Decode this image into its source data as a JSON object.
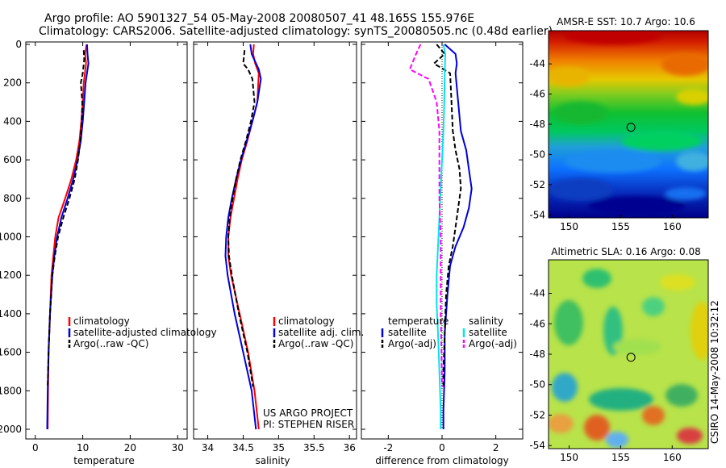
{
  "header": {
    "title_line1": "Argo profile: AO 5901327_54 05-May-2008 20080507_41 48.165S 155.976E",
    "title_line2": "Climatology: CARS2006. Satellite-adjusted climatology: synTS_20080505.nc (0.48d earlier)"
  },
  "colors": {
    "climatology": "#ff0000",
    "satellite": "#0000dd",
    "argo": "#000000",
    "sal_satellite": "#00e5ee",
    "sal_argo": "#ff00ff"
  },
  "credit": {
    "project": "US ARGO PROJECT",
    "pi": "PI: STEPHEN RISER",
    "stamp": "CSIRO 14-May-2008 10:32:12"
  },
  "chart_data": [
    {
      "id": "temperature-panel",
      "type": "line",
      "xlabel": "temperature",
      "xlim": [
        -2,
        32
      ],
      "xticks": [
        "0",
        "10",
        "20",
        "30"
      ],
      "ylim": [
        2000,
        0
      ],
      "yticks": [
        "0",
        "200",
        "400",
        "600",
        "800",
        "1000",
        "1200",
        "1400",
        "1600",
        "1800",
        "2000"
      ],
      "legend": [
        "climatology",
        "satellite-adjusted climatology",
        "Argo(..raw -QC)"
      ],
      "series": [
        {
          "name": "climatology",
          "color": "#ff0000",
          "dash": "",
          "x": [
            10.8,
            10.5,
            10.7,
            10.2,
            10.0,
            9.7,
            9.3,
            8.6,
            7.6,
            6.3,
            4.9,
            4.2,
            3.8,
            3.4,
            3.1,
            2.8,
            2.7,
            2.6
          ],
          "y": [
            0,
            50,
            100,
            200,
            300,
            400,
            500,
            600,
            700,
            800,
            900,
            1000,
            1100,
            1200,
            1400,
            1600,
            1800,
            2000
          ]
        },
        {
          "name": "satellite-adjusted climatology",
          "color": "#0000dd",
          "dash": "",
          "x": [
            10.9,
            11.0,
            11.2,
            10.6,
            10.3,
            10.0,
            9.6,
            8.9,
            8.0,
            6.8,
            5.5,
            4.6,
            4.0,
            3.6,
            3.1,
            2.8,
            2.6,
            2.5
          ],
          "y": [
            0,
            50,
            100,
            200,
            300,
            400,
            500,
            600,
            700,
            800,
            900,
            1000,
            1100,
            1200,
            1400,
            1600,
            1800,
            2000
          ]
        },
        {
          "name": "Argo(..raw -QC)",
          "color": "#000000",
          "dash": "6,3",
          "x": [
            10.2,
            10.3,
            10.0,
            9.6,
            9.9,
            9.8,
            9.5,
            9.0,
            8.3,
            7.2,
            5.9,
            4.8,
            4.1,
            3.6,
            3.1,
            2.8,
            2.6
          ],
          "y": [
            30,
            80,
            150,
            200,
            300,
            400,
            500,
            600,
            700,
            800,
            900,
            1000,
            1100,
            1200,
            1400,
            1600,
            1780
          ]
        }
      ]
    },
    {
      "id": "salinity-panel",
      "type": "line",
      "xlabel": "salinity",
      "xlim": [
        33.8,
        36.1
      ],
      "xticks": [
        "34",
        "34.5",
        "35",
        "35.5",
        "36"
      ],
      "ylim": [
        2000,
        0
      ],
      "legend": [
        "climatology",
        "satellite adj. clim.",
        "Argo(..raw -QC)"
      ],
      "series": [
        {
          "name": "climatology",
          "color": "#ff0000",
          "dash": "",
          "x": [
            34.65,
            34.64,
            34.67,
            34.72,
            34.7,
            34.63,
            34.56,
            34.48,
            34.42,
            34.37,
            34.32,
            34.29,
            34.29,
            34.33,
            34.45,
            34.57,
            34.66,
            34.72
          ],
          "y": [
            0,
            50,
            100,
            150,
            300,
            400,
            500,
            600,
            700,
            800,
            900,
            1000,
            1100,
            1200,
            1400,
            1600,
            1800,
            2000
          ]
        },
        {
          "name": "satellite adj. clim.",
          "color": "#0000dd",
          "dash": "",
          "x": [
            34.6,
            34.62,
            34.72,
            34.75,
            34.7,
            34.63,
            34.55,
            34.47,
            34.4,
            34.34,
            34.29,
            34.26,
            34.25,
            34.28,
            34.38,
            34.5,
            34.62,
            34.68
          ],
          "y": [
            0,
            50,
            130,
            180,
            300,
            400,
            500,
            600,
            700,
            800,
            900,
            1000,
            1100,
            1200,
            1400,
            1600,
            1800,
            2000
          ]
        },
        {
          "name": "Argo(..raw -QC)",
          "color": "#000000",
          "dash": "6,3",
          "x": [
            34.52,
            34.5,
            34.57,
            34.63,
            34.66,
            34.61,
            34.54,
            34.46,
            34.4,
            34.35,
            34.31,
            34.29,
            34.3,
            34.34,
            34.44,
            34.56,
            34.64
          ],
          "y": [
            30,
            100,
            130,
            180,
            300,
            400,
            500,
            600,
            700,
            800,
            900,
            1000,
            1100,
            1200,
            1400,
            1600,
            1780
          ]
        }
      ]
    },
    {
      "id": "difference-panel",
      "type": "line",
      "xlabel": "difference from climatology",
      "xlim": [
        -3.0,
        3.0
      ],
      "xticks": [
        "-2",
        "0",
        "2"
      ],
      "ylim": [
        2000,
        0
      ],
      "legend_temperature_title": "temperature",
      "legend_salinity_title": "salinity",
      "legend_temperature": [
        "satellite",
        "Argo(-adj)"
      ],
      "legend_salinity": [
        "satellite",
        "Argo(-adj)"
      ],
      "series": [
        {
          "name": "temperature satellite",
          "color": "#0000dd",
          "dash": "",
          "x": [
            0.1,
            0.5,
            0.55,
            0.5,
            0.6,
            0.7,
            0.9,
            1.0,
            1.1,
            1.0,
            0.8,
            0.5,
            0.3,
            0.2,
            0.1,
            0.1,
            0.05,
            0.05
          ],
          "y": [
            0,
            50,
            100,
            150,
            300,
            450,
            550,
            650,
            750,
            850,
            950,
            1050,
            1150,
            1300,
            1500,
            1700,
            1900,
            2000
          ]
        },
        {
          "name": "temperature Argo(-adj)",
          "color": "#000000",
          "dash": "6,3",
          "x": [
            -0.2,
            0.1,
            -0.3,
            0.3,
            0.35,
            0.4,
            0.5,
            0.65,
            0.7,
            0.6,
            0.5,
            0.4,
            0.25,
            0.15,
            0.1,
            0.05,
            0.05
          ],
          "y": [
            0,
            50,
            100,
            150,
            300,
            450,
            550,
            650,
            750,
            850,
            950,
            1050,
            1150,
            1300,
            1500,
            1700,
            1780
          ]
        },
        {
          "name": "salinity satellite",
          "color": "#00e5ee",
          "dash": "",
          "x": [
            0.05,
            0.12,
            0.1,
            0.08,
            0.05,
            0.0,
            -0.05,
            -0.1,
            -0.15,
            -0.2,
            -0.2,
            -0.15,
            -0.1,
            -0.05,
            -0.05
          ],
          "y": [
            0,
            50,
            150,
            300,
            450,
            600,
            750,
            900,
            1050,
            1200,
            1350,
            1500,
            1700,
            1900,
            2000
          ]
        },
        {
          "name": "salinity Argo(-adj)",
          "color": "#ff00ff",
          "dash": "6,3",
          "x": [
            -0.8,
            -1.0,
            -1.2,
            -0.5,
            -0.2,
            -0.1,
            -0.1,
            -0.1,
            -0.05,
            -0.05,
            -0.05,
            -0.02,
            0.0
          ],
          "y": [
            0,
            60,
            130,
            180,
            300,
            450,
            600,
            800,
            1000,
            1200,
            1400,
            1600,
            1780
          ]
        }
      ]
    },
    {
      "id": "sst-map",
      "type": "heatmap",
      "title": "AMSR-E SST: 10.7 Argo: 10.6",
      "xlim": [
        148,
        163.5
      ],
      "ylim": [
        -54.2,
        -41.8
      ],
      "xticks": [
        "150",
        "155",
        "160"
      ],
      "yticks": [
        "-44",
        "-46",
        "-48",
        "-50",
        "-52",
        "-54"
      ],
      "argo_point": [
        156.0,
        -48.2
      ]
    },
    {
      "id": "sla-map",
      "type": "heatmap",
      "title": "Altimetric SLA: 0.16 Argo: 0.08",
      "xlim": [
        148,
        163.5
      ],
      "ylim": [
        -54.2,
        -41.8
      ],
      "xticks": [
        "150",
        "155",
        "160"
      ],
      "yticks": [
        "-44",
        "-46",
        "-48",
        "-50",
        "-52",
        "-54"
      ],
      "argo_point": [
        156.0,
        -48.2
      ]
    }
  ]
}
